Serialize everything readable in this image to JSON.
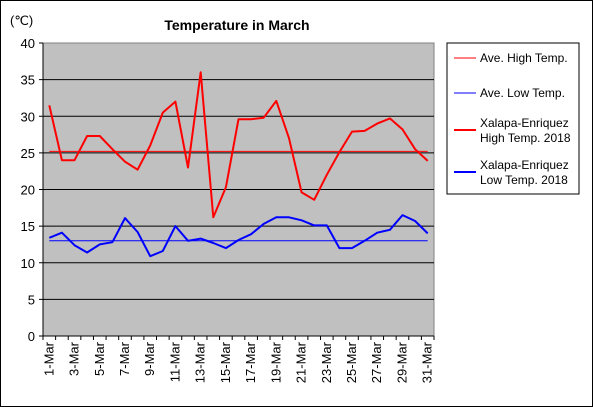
{
  "chart_data": {
    "type": "line",
    "title": "Temperature in March",
    "unit": "(℃)",
    "ylim": [
      0,
      40
    ],
    "yticks": [
      0,
      5,
      10,
      15,
      20,
      25,
      30,
      35,
      40
    ],
    "x": [
      "1-Mar",
      "2-Mar",
      "3-Mar",
      "4-Mar",
      "5-Mar",
      "6-Mar",
      "7-Mar",
      "8-Mar",
      "9-Mar",
      "10-Mar",
      "11-Mar",
      "12-Mar",
      "13-Mar",
      "14-Mar",
      "15-Mar",
      "16-Mar",
      "17-Mar",
      "18-Mar",
      "19-Mar",
      "20-Mar",
      "21-Mar",
      "22-Mar",
      "23-Mar",
      "24-Mar",
      "25-Mar",
      "26-Mar",
      "27-Mar",
      "28-Mar",
      "29-Mar",
      "30-Mar",
      "31-Mar"
    ],
    "xtick_labels": [
      "1-Mar",
      "3-Mar",
      "5-Mar",
      "7-Mar",
      "9-Mar",
      "11-Mar",
      "13-Mar",
      "15-Mar",
      "17-Mar",
      "19-Mar",
      "21-Mar",
      "23-Mar",
      "25-Mar",
      "27-Mar",
      "29-Mar",
      "31-Mar"
    ],
    "grid": true,
    "legend_position": "right",
    "plot_background": "#c0c0c0",
    "series": [
      {
        "name": "Ave. High Temp.",
        "color": "#ff0000",
        "width": 1,
        "values": [
          25.2,
          25.2,
          25.2,
          25.2,
          25.2,
          25.2,
          25.2,
          25.2,
          25.2,
          25.2,
          25.2,
          25.2,
          25.2,
          25.2,
          25.2,
          25.2,
          25.2,
          25.2,
          25.2,
          25.2,
          25.2,
          25.2,
          25.2,
          25.2,
          25.2,
          25.2,
          25.2,
          25.2,
          25.2,
          25.2,
          25.2
        ]
      },
      {
        "name": "Ave. Low Temp.",
        "color": "#0000ff",
        "width": 1,
        "values": [
          13,
          13,
          13,
          13,
          13,
          13,
          13,
          13,
          13,
          13,
          13,
          13,
          13,
          13,
          13,
          13,
          13,
          13,
          13,
          13,
          13,
          13,
          13,
          13,
          13,
          13,
          13,
          13,
          13,
          13,
          13
        ]
      },
      {
        "name": "Xalapa-Enriquez\nHigh Temp. 2018",
        "color": "#ff0000",
        "width": 2,
        "values": [
          31.5,
          24,
          24,
          27.3,
          27.3,
          25.5,
          23.8,
          22.7,
          26,
          30.5,
          32,
          23,
          36,
          16.2,
          20.3,
          29.6,
          29.6,
          29.8,
          32.1,
          27,
          19.6,
          18.6,
          22,
          25.1,
          27.9,
          28,
          29,
          29.7,
          28.2,
          25.5,
          23.9
        ]
      },
      {
        "name": "Xalapa-Enriquez\nLow Temp. 2018",
        "color": "#0000ff",
        "width": 2,
        "values": [
          13.4,
          14.1,
          12.4,
          11.4,
          12.5,
          12.8,
          16.1,
          14.2,
          10.9,
          11.6,
          15,
          13,
          13.3,
          12.7,
          12,
          13.1,
          13.9,
          15.3,
          16.2,
          16.2,
          15.8,
          15.1,
          15.1,
          12,
          12,
          13,
          14.1,
          14.5,
          16.5,
          15.7,
          14
        ]
      }
    ]
  }
}
